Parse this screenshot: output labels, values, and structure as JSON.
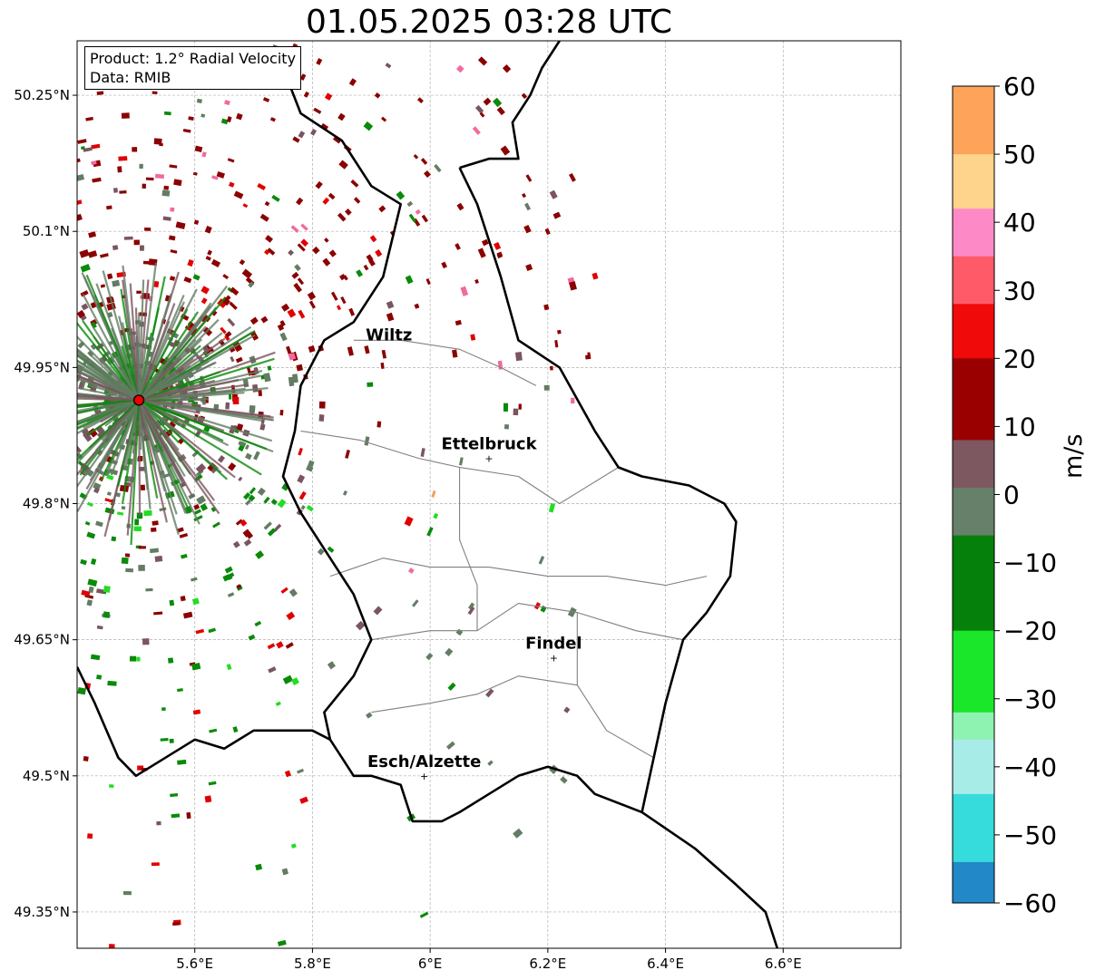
{
  "title": "01.05.2025 03:28 UTC",
  "info_box": {
    "product": "Product: 1.2° Radial Velocity",
    "data": "Data: RMIB"
  },
  "map": {
    "lon_range": [
      5.4,
      6.8
    ],
    "lat_range": [
      49.31,
      50.31
    ],
    "x_ticks": [
      {
        "value": 5.6,
        "label": "5.6°E"
      },
      {
        "value": 5.8,
        "label": "5.8°E"
      },
      {
        "value": 6.0,
        "label": "6°E"
      },
      {
        "value": 6.2,
        "label": "6.2°E"
      },
      {
        "value": 6.4,
        "label": "6.4°E"
      },
      {
        "value": 6.6,
        "label": "6.6°E"
      }
    ],
    "y_ticks": [
      {
        "value": 50.25,
        "label": "50.25°N"
      },
      {
        "value": 50.1,
        "label": "50.1°N"
      },
      {
        "value": 49.95,
        "label": "49.95°N"
      },
      {
        "value": 49.8,
        "label": "49.8°N"
      },
      {
        "value": 49.65,
        "label": "49.65°N"
      },
      {
        "value": 49.5,
        "label": "49.5°N"
      },
      {
        "value": 49.35,
        "label": "49.35°N"
      }
    ],
    "grid": true,
    "radar_site": {
      "lon": 5.505,
      "lat": 49.914
    },
    "cities": [
      {
        "name": "Wiltz",
        "lon": 5.93,
        "lat": 49.97,
        "marker": false
      },
      {
        "name": "Ettelbruck",
        "lon": 6.1,
        "lat": 49.85,
        "marker": true
      },
      {
        "name": "Findel",
        "lon": 6.21,
        "lat": 49.63,
        "marker": true
      },
      {
        "name": "Esch/Alzette",
        "lon": 5.99,
        "lat": 49.5,
        "marker": true
      }
    ],
    "borders": {
      "west": [
        [
          5.4,
          49.62
        ],
        [
          5.43,
          49.58
        ],
        [
          5.45,
          49.55
        ],
        [
          5.47,
          49.52
        ],
        [
          5.5,
          49.5
        ],
        [
          5.55,
          49.52
        ],
        [
          5.6,
          49.54
        ],
        [
          5.65,
          49.53
        ],
        [
          5.7,
          49.55
        ],
        [
          5.75,
          49.55
        ],
        [
          5.8,
          49.55
        ],
        [
          5.83,
          49.54
        ],
        [
          5.85,
          49.52
        ],
        [
          5.87,
          49.5
        ],
        [
          5.9,
          49.5
        ],
        [
          5.95,
          49.49
        ],
        [
          5.97,
          49.45
        ],
        [
          6.02,
          49.45
        ],
        [
          6.05,
          49.46
        ],
        [
          6.1,
          49.48
        ],
        [
          6.15,
          49.5
        ],
        [
          6.2,
          49.51
        ],
        [
          6.25,
          49.5
        ],
        [
          6.28,
          49.48
        ],
        [
          6.36,
          49.46
        ]
      ],
      "belgium": [
        [
          5.75,
          50.28
        ],
        [
          5.78,
          50.23
        ],
        [
          5.85,
          50.2
        ],
        [
          5.9,
          50.15
        ],
        [
          5.95,
          50.13
        ],
        [
          5.92,
          50.05
        ],
        [
          5.87,
          50.0
        ],
        [
          5.82,
          49.98
        ],
        [
          5.78,
          49.93
        ],
        [
          5.77,
          49.88
        ],
        [
          5.75,
          49.83
        ],
        [
          5.78,
          49.79
        ],
        [
          5.82,
          49.75
        ],
        [
          5.87,
          49.7
        ],
        [
          5.9,
          49.65
        ],
        [
          5.87,
          49.61
        ],
        [
          5.82,
          49.57
        ],
        [
          5.83,
          49.54
        ]
      ],
      "germany": [
        [
          6.05,
          50.17
        ],
        [
          6.08,
          50.13
        ],
        [
          6.12,
          50.05
        ],
        [
          6.15,
          49.98
        ],
        [
          6.22,
          49.95
        ],
        [
          6.28,
          49.88
        ],
        [
          6.32,
          49.84
        ],
        [
          6.36,
          49.83
        ],
        [
          6.44,
          49.82
        ],
        [
          6.5,
          49.8
        ],
        [
          6.52,
          49.78
        ],
        [
          6.51,
          49.72
        ],
        [
          6.47,
          49.68
        ],
        [
          6.43,
          49.65
        ],
        [
          6.4,
          49.58
        ],
        [
          6.38,
          49.52
        ],
        [
          6.36,
          49.46
        ],
        [
          6.45,
          49.42
        ],
        [
          6.52,
          49.38
        ],
        [
          6.57,
          49.35
        ],
        [
          6.59,
          49.31
        ]
      ],
      "north": [
        [
          6.05,
          50.17
        ],
        [
          6.1,
          50.18
        ],
        [
          6.15,
          50.18
        ],
        [
          6.14,
          50.22
        ],
        [
          6.17,
          50.25
        ],
        [
          6.19,
          50.28
        ],
        [
          6.22,
          50.31
        ]
      ]
    },
    "cantons": [
      [
        [
          5.87,
          49.98
        ],
        [
          5.95,
          49.98
        ],
        [
          6.05,
          49.97
        ],
        [
          6.12,
          49.95
        ],
        [
          6.18,
          49.93
        ]
      ],
      [
        [
          5.78,
          49.88
        ],
        [
          5.88,
          49.87
        ],
        [
          5.98,
          49.85
        ],
        [
          6.05,
          49.84
        ],
        [
          6.15,
          49.83
        ],
        [
          6.22,
          49.8
        ],
        [
          6.32,
          49.84
        ]
      ],
      [
        [
          5.83,
          49.72
        ],
        [
          5.92,
          49.74
        ],
        [
          6.0,
          49.73
        ],
        [
          6.1,
          49.73
        ],
        [
          6.2,
          49.72
        ],
        [
          6.3,
          49.72
        ],
        [
          6.4,
          49.71
        ],
        [
          6.47,
          49.72
        ]
      ],
      [
        [
          5.9,
          49.65
        ],
        [
          6.0,
          49.66
        ],
        [
          6.08,
          49.66
        ],
        [
          6.15,
          49.69
        ],
        [
          6.25,
          49.68
        ],
        [
          6.35,
          49.66
        ],
        [
          6.43,
          49.65
        ]
      ],
      [
        [
          5.9,
          49.57
        ],
        [
          6.0,
          49.58
        ],
        [
          6.08,
          49.59
        ],
        [
          6.15,
          49.61
        ],
        [
          6.25,
          49.6
        ],
        [
          6.3,
          49.55
        ],
        [
          6.38,
          49.52
        ]
      ],
      [
        [
          6.05,
          49.84
        ],
        [
          6.05,
          49.76
        ],
        [
          6.08,
          49.71
        ],
        [
          6.08,
          49.66
        ]
      ],
      [
        [
          6.25,
          49.68
        ],
        [
          6.25,
          49.6
        ]
      ]
    ]
  },
  "colorbar": {
    "label": "m/s",
    "min": -60,
    "max": 60,
    "ticks": [
      {
        "value": 60,
        "label": "60"
      },
      {
        "value": 50,
        "label": "50"
      },
      {
        "value": 40,
        "label": "40"
      },
      {
        "value": 30,
        "label": "30"
      },
      {
        "value": 20,
        "label": "20"
      },
      {
        "value": 10,
        "label": "10"
      },
      {
        "value": 0,
        "label": "0"
      },
      {
        "value": -10,
        "label": "−10"
      },
      {
        "value": -20,
        "label": "−20"
      },
      {
        "value": -30,
        "label": "−30"
      },
      {
        "value": -40,
        "label": "−40"
      },
      {
        "value": -50,
        "label": "−50"
      },
      {
        "value": -60,
        "label": "−60"
      }
    ],
    "stops": [
      {
        "from": 50,
        "to": 60,
        "color": "#fda35a"
      },
      {
        "from": 42,
        "to": 50,
        "color": "#fed38c"
      },
      {
        "from": 35,
        "to": 42,
        "color": "#fd8ac6"
      },
      {
        "from": 28,
        "to": 35,
        "color": "#fe5a68"
      },
      {
        "from": 20,
        "to": 28,
        "color": "#f00a0a"
      },
      {
        "from": 8,
        "to": 20,
        "color": "#9a0000"
      },
      {
        "from": 1,
        "to": 8,
        "color": "#7d5860"
      },
      {
        "from": -6,
        "to": 1,
        "color": "#66806a"
      },
      {
        "from": -20,
        "to": -6,
        "color": "#05800a"
      },
      {
        "from": -32,
        "to": -20,
        "color": "#1ae62a"
      },
      {
        "from": -36,
        "to": -32,
        "color": "#8ef2b0"
      },
      {
        "from": -44,
        "to": -36,
        "color": "#a8ece8"
      },
      {
        "from": -54,
        "to": -44,
        "color": "#36dcdc"
      },
      {
        "from": -60,
        "to": -54,
        "color": "#2288c8"
      }
    ]
  },
  "echo_palette": {
    "dark_red": "#8b0000",
    "red": "#e00000",
    "pink": "#f06aa0",
    "mauve": "#7a5560",
    "gray_green": "#637c63",
    "green": "#0a8a0a",
    "bright_green": "#22dd22",
    "orange": "#f0a060",
    "cyan": "#30c8c8"
  }
}
